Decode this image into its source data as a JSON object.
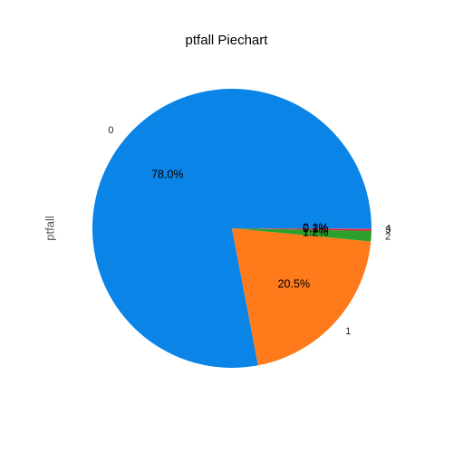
{
  "chart_data": {
    "type": "pie",
    "title": "ptfall Piechart",
    "ylabel": "ptfall",
    "slices": [
      {
        "label": "0",
        "percent": 78.0,
        "pct_label": "78.0%",
        "color": "#0a84e6"
      },
      {
        "label": "1",
        "percent": 20.5,
        "pct_label": "20.5%",
        "color": "#ff7a1a"
      },
      {
        "label": "2",
        "percent": 1.2,
        "pct_label": "1.2%",
        "color": "#2ca02c"
      },
      {
        "label": "3",
        "percent": 0.2,
        "pct_label": "0.2%",
        "color": "#d62728"
      },
      {
        "label": "4",
        "percent": 0.1,
        "pct_label": "0.1%",
        "color": "#9467bd"
      }
    ]
  }
}
